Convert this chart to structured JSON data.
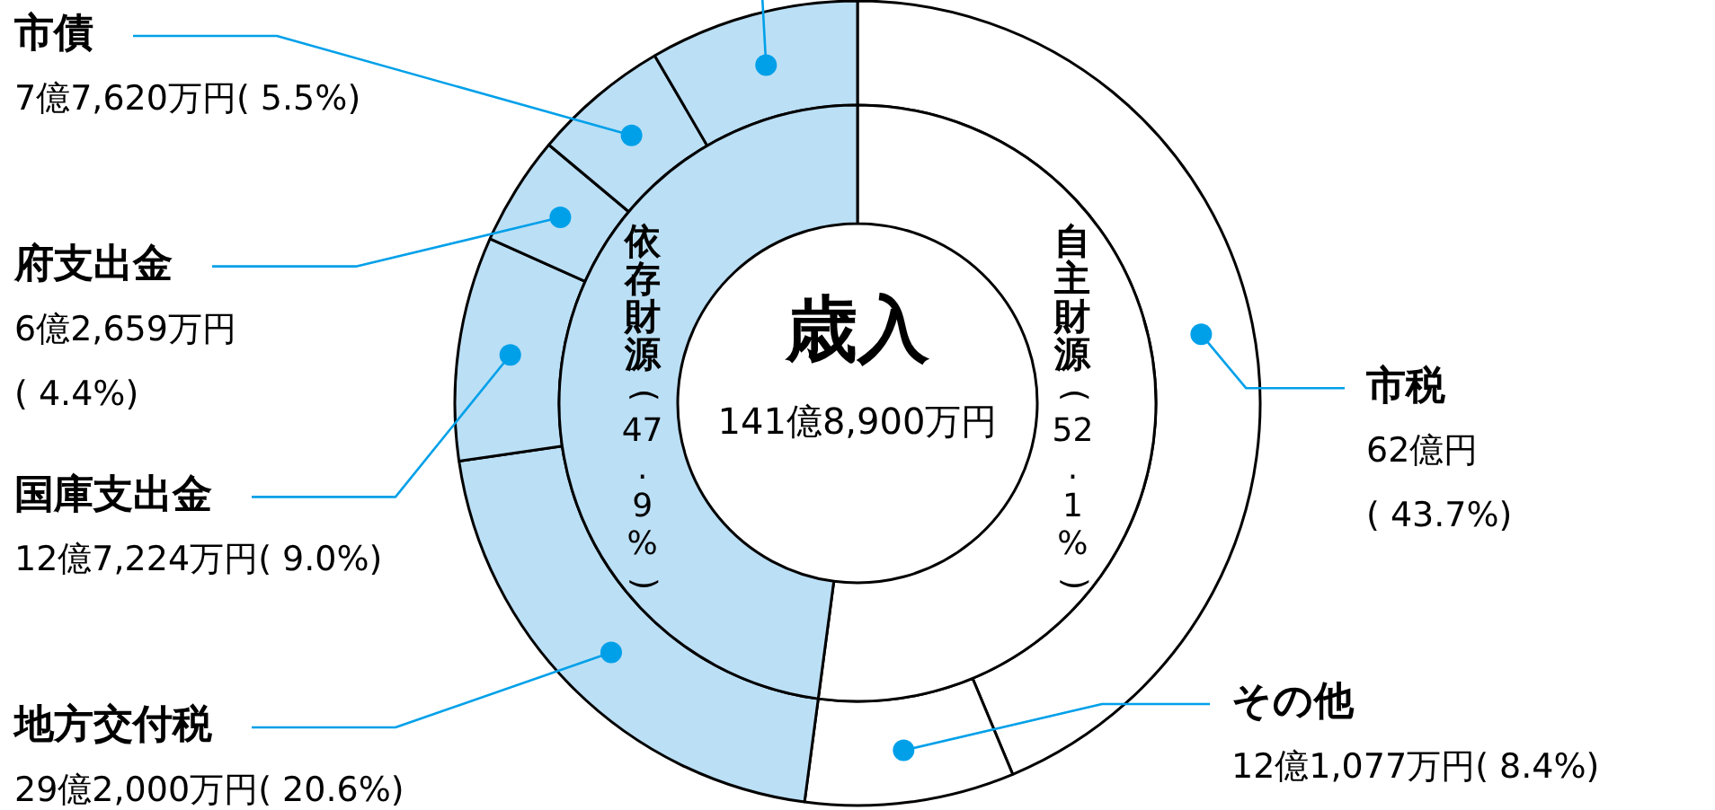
{
  "chart_data": [
    {
      "type": "donut",
      "categories": [
        "市税",
        "その他",
        "地方交付税",
        "国庫支出金",
        "府支出金",
        "市債",
        null
      ],
      "values": [
        43.7,
        8.4,
        20.6,
        9.0,
        4.4,
        5.5,
        8.4
      ],
      "colors": [
        "#ffffff",
        "#ffffff",
        "#bbdff5",
        "#bbdff5",
        "#bbdff5",
        "#bbdff5",
        "#bbdff5"
      ],
      "value_labels": [
        "62億円\n( 43.7%)",
        "12億1,077万円( 8.4%)",
        "29億2,000万円( 20.6%)",
        "12億7,224万円( 9.0%)",
        "6億2,659万円\n( 4.4%)",
        "7億7,620万円( 5.5%)",
        null
      ]
    },
    {
      "type": "donut",
      "title": "歳入",
      "subtitle": "141億8,900万円",
      "categories": [
        "自主財源",
        "依存財源"
      ],
      "values": [
        52.1,
        47.9
      ],
      "colors": [
        "#ffffff",
        "#bbdff5"
      ],
      "value_labels": [
        "(52.1%)",
        "(47.9%)"
      ]
    }
  ]
}
